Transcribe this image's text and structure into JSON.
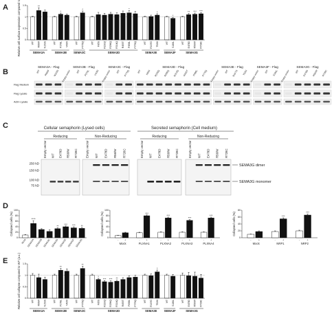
{
  "panels": {
    "a": "A",
    "b": "B",
    "c": "C",
    "d": "D",
    "e": "E"
  },
  "panel_a": {
    "ylabel": "Relative cell surface expression compared to WT (%)",
    "yticks": [
      "0",
      "0.5",
      "1",
      "1.5"
    ],
    "ymax": 1.5,
    "groups": [
      {
        "name": "SEMA3A",
        "bars": [
          {
            "label": "WT",
            "value": 1.0,
            "err": 0.03,
            "fill": "white",
            "star": ""
          },
          {
            "label": "R66W",
            "value": 1.28,
            "err": 0.12,
            "fill": "black",
            "star": "**"
          },
          {
            "label": "N153S",
            "value": 1.22,
            "err": 0.08,
            "fill": "black",
            "star": ""
          }
        ]
      },
      {
        "name": "SEMA3B",
        "bars": [
          {
            "label": "WT",
            "value": 1.0,
            "err": 0.03,
            "fill": "white",
            "star": ""
          },
          {
            "label": "P278L",
            "value": 1.12,
            "err": 0.05,
            "fill": "black",
            "star": "*"
          },
          {
            "label": "V435I",
            "value": 1.08,
            "err": 0.05,
            "fill": "black",
            "star": ""
          }
        ]
      },
      {
        "name": "SEMA3C",
        "bars": [
          {
            "label": "WT",
            "value": 1.0,
            "err": 0.03,
            "fill": "white",
            "star": ""
          },
          {
            "label": "P775Q",
            "value": 1.18,
            "err": 0.08,
            "fill": "black",
            "star": "*"
          }
        ]
      },
      {
        "name": "SEMA3D",
        "bars": [
          {
            "label": "WT",
            "value": 1.0,
            "err": 0.03,
            "fill": "white",
            "star": ""
          },
          {
            "label": "F85S",
            "value": 1.1,
            "err": 0.1,
            "fill": "black",
            "star": ""
          },
          {
            "label": "R230Q",
            "value": 1.08,
            "err": 0.08,
            "fill": "black",
            "star": ""
          },
          {
            "label": "R296Q",
            "value": 1.12,
            "err": 0.08,
            "fill": "black",
            "star": ""
          },
          {
            "label": "R314Q",
            "value": 1.1,
            "err": 0.08,
            "fill": "black",
            "star": ""
          },
          {
            "label": "R455T",
            "value": 1.16,
            "err": 0.1,
            "fill": "black",
            "star": ""
          },
          {
            "label": "P498L",
            "value": 1.18,
            "err": 0.1,
            "fill": "black",
            "star": "*"
          },
          {
            "label": "P775Q",
            "value": 1.14,
            "err": 0.1,
            "fill": "black",
            "star": ""
          }
        ]
      },
      {
        "name": "SEMA3E",
        "bars": [
          {
            "label": "WT",
            "value": 1.0,
            "err": 0.03,
            "fill": "white",
            "star": ""
          },
          {
            "label": "R167G",
            "value": 1.02,
            "err": 0.06,
            "fill": "black",
            "star": ""
          },
          {
            "label": "T526I",
            "value": 1.08,
            "err": 0.06,
            "fill": "black",
            "star": "*"
          }
        ]
      },
      {
        "name": "SEMA3F",
        "bars": [
          {
            "label": "WT",
            "value": 1.0,
            "err": 0.03,
            "fill": "white",
            "star": ""
          },
          {
            "label": "S186L",
            "value": 0.94,
            "err": 0.05,
            "fill": "black",
            "star": "*"
          }
        ]
      },
      {
        "name": "SEMA3G",
        "bars": [
          {
            "label": "WT",
            "value": 1.0,
            "err": 0.03,
            "fill": "white",
            "star": ""
          },
          {
            "label": "E478D",
            "value": 1.1,
            "err": 0.05,
            "fill": "black",
            "star": "**"
          },
          {
            "label": "R56/W",
            "value": 1.12,
            "err": 0.05,
            "fill": "black",
            "star": "***"
          },
          {
            "label": "R728C",
            "value": 1.14,
            "err": 0.05,
            "fill": "black",
            "star": "***"
          }
        ]
      }
    ]
  },
  "panel_b": {
    "rows": [
      "Flag Medium",
      "Flag Lysate",
      "Actin Lysate"
    ],
    "blots": [
      {
        "title": "SEMA3A - Flag",
        "lanes": [
          "WT",
          "R66W",
          "N153S"
        ]
      },
      {
        "title": "SEMA3B - Flag",
        "lanes": [
          "Empty vector",
          "WT",
          "P278L",
          "V435I"
        ]
      },
      {
        "title": "SEMA3C - Flag",
        "lanes": [
          "Empty vector",
          "WT",
          "P775Q"
        ]
      },
      {
        "title": "SEMA3D - Flag",
        "lanes": [
          "WT",
          "F85S",
          "R230Q",
          "R296Q",
          "R314Q",
          "R455T",
          "P498L",
          "P775Q"
        ]
      },
      {
        "title": "SEMA3E - Flag",
        "lanes": [
          "Empty vector",
          "WT",
          "R167G",
          "T526I"
        ]
      },
      {
        "title": "SEMA3F - Flag",
        "lanes": [
          "Empty vector",
          "WT",
          "S186L"
        ]
      },
      {
        "title": "SEMA3G - Flag",
        "lanes": [
          "Empty vector",
          "WT",
          "E478D",
          "R56/W",
          "R728C"
        ]
      }
    ]
  },
  "panel_c": {
    "title_left": "Cellular semaphorin (Lysed cells)",
    "title_right": "Secreted semaphorin (Cell medium)",
    "sub": [
      "Reducing",
      "Non-Reducing",
      "Reducing",
      "Non-Reducing"
    ],
    "lanes": [
      "Empty vector",
      "WT",
      "E478D",
      "R56/W",
      "R728C"
    ],
    "markers": [
      "250 kD",
      "150 kD",
      "100 kD",
      "75 kD"
    ],
    "dimer": "SEMA3G dimer",
    "monomer": "SEMA3G monomer"
  },
  "panel_d": {
    "ylabel": "Collapsed cells (%)",
    "left": {
      "yticks": [
        "0",
        "20",
        "40",
        "60",
        "80",
        "100"
      ],
      "ymax": 100,
      "bars": [
        {
          "label": "Mock",
          "value": 10,
          "err": 2,
          "fill": "white",
          "star": ""
        },
        {
          "label": "SEMA3A",
          "value": 52,
          "err": 10,
          "fill": "black",
          "star": "****"
        },
        {
          "label": "SEMA3B",
          "value": 30,
          "err": 3,
          "fill": "black",
          "star": ""
        },
        {
          "label": "SEMA3C",
          "value": 23,
          "err": 6,
          "fill": "black",
          "star": ""
        },
        {
          "label": "SEMA3D",
          "value": 33,
          "err": 3,
          "fill": "black",
          "star": "**"
        },
        {
          "label": "SEMA3E",
          "value": 40,
          "err": 3,
          "fill": "black",
          "star": "***"
        },
        {
          "label": "SEMA3F",
          "value": 36,
          "err": 4,
          "fill": "black",
          "star": "***"
        },
        {
          "label": "SEMA3G",
          "value": 34,
          "err": 4,
          "fill": "black",
          "star": "**"
        }
      ]
    },
    "middle": {
      "yticks": [
        "0",
        "20",
        "40",
        "60",
        "80",
        "100"
      ],
      "ymax": 100,
      "signs": [
        "-",
        "+"
      ],
      "groups": [
        {
          "name": "Mock",
          "vals": [
            8,
            18
          ],
          "errs": [
            1,
            2
          ],
          "stars": [
            "",
            ""
          ]
        },
        {
          "name": "PLXNA1",
          "vals": [
            18,
            80
          ],
          "errs": [
            2,
            3
          ],
          "stars": [
            "",
            "***"
          ]
        },
        {
          "name": "PLXNA2",
          "vals": [
            20,
            72
          ],
          "errs": [
            2,
            3
          ],
          "stars": [
            "",
            "***"
          ]
        },
        {
          "name": "PLXNA3",
          "vals": [
            20,
            63
          ],
          "errs": [
            2,
            3
          ],
          "stars": [
            "",
            "***"
          ]
        },
        {
          "name": "PLXNA4",
          "vals": [
            20,
            72
          ],
          "errs": [
            2,
            3
          ],
          "stars": [
            "",
            "***"
          ]
        }
      ]
    },
    "right": {
      "yticks": [
        "0",
        "20",
        "40",
        "60",
        "80"
      ],
      "ymax": 80,
      "signs": [
        "-",
        "+"
      ],
      "groups": [
        {
          "name": "Mock",
          "vals": [
            10,
            18
          ],
          "errs": [
            1,
            2
          ],
          "stars": [
            "",
            ""
          ]
        },
        {
          "name": "NRP1",
          "vals": [
            18,
            55
          ],
          "errs": [
            2,
            3
          ],
          "stars": [
            "",
            "***"
          ]
        },
        {
          "name": "NRP2",
          "vals": [
            20,
            66
          ],
          "errs": [
            2,
            3
          ],
          "stars": [
            "",
            "***"
          ]
        }
      ]
    }
  },
  "panel_e": {
    "ylabel": "Relative cell collapse compared to WT (a.u.)",
    "yticks": [
      "0",
      "0.5",
      "1",
      "1.5"
    ],
    "ymax": 1.5,
    "groups": [
      {
        "name": "SEMA3A",
        "bars": [
          {
            "label": "WT",
            "value": 1.0,
            "err": 0.08,
            "fill": "white",
            "star": ""
          },
          {
            "label": "R66W",
            "value": 0.9,
            "err": 0.15,
            "fill": "black",
            "star": ""
          },
          {
            "label": "N153S",
            "value": 0.82,
            "err": 0.1,
            "fill": "black",
            "star": ""
          }
        ]
      },
      {
        "name": "SEMA3B",
        "bars": [
          {
            "label": "WT",
            "value": 1.0,
            "err": 0.05,
            "fill": "white",
            "star": ""
          },
          {
            "label": "P278L",
            "value": 1.22,
            "err": 0.08,
            "fill": "black",
            "star": "**"
          },
          {
            "label": "V435I",
            "value": 1.18,
            "err": 0.1,
            "fill": "black",
            "star": ""
          }
        ]
      },
      {
        "name": "SEMA3C",
        "bars": [
          {
            "label": "WT",
            "value": 1.0,
            "err": 0.05,
            "fill": "white",
            "star": ""
          },
          {
            "label": "P775Q",
            "value": 1.3,
            "err": 0.1,
            "fill": "black",
            "star": "**"
          }
        ]
      },
      {
        "name": "SEMA3D",
        "bars": [
          {
            "label": "WT",
            "value": 1.0,
            "err": 0.05,
            "fill": "white",
            "star": ""
          },
          {
            "label": "F85S",
            "value": 0.82,
            "err": 0.05,
            "fill": "black",
            "star": "*"
          },
          {
            "label": "R230Q",
            "value": 0.72,
            "err": 0.05,
            "fill": "black",
            "star": "***"
          },
          {
            "label": "R296Q",
            "value": 0.7,
            "err": 0.06,
            "fill": "black",
            "star": "***"
          },
          {
            "label": "R314Q",
            "value": 0.74,
            "err": 0.05,
            "fill": "black",
            "star": "**"
          },
          {
            "label": "R455T",
            "value": 0.82,
            "err": 0.08,
            "fill": "black",
            "star": ""
          },
          {
            "label": "P498L",
            "value": 0.9,
            "err": 0.08,
            "fill": "black",
            "star": ""
          },
          {
            "label": "P775Q",
            "value": 0.92,
            "err": 0.08,
            "fill": "black",
            "star": ""
          }
        ]
      },
      {
        "name": "SEMA3E",
        "bars": [
          {
            "label": "WT",
            "value": 1.0,
            "err": 0.05,
            "fill": "white",
            "star": ""
          },
          {
            "label": "R167G",
            "value": 0.98,
            "err": 0.08,
            "fill": "black",
            "star": ""
          },
          {
            "label": "T526I",
            "value": 1.15,
            "err": 0.08,
            "fill": "black",
            "star": "*"
          }
        ]
      },
      {
        "name": "SEMA3F",
        "bars": [
          {
            "label": "WT",
            "value": 1.0,
            "err": 0.05,
            "fill": "white",
            "star": ""
          },
          {
            "label": "S186L",
            "value": 0.96,
            "err": 0.08,
            "fill": "black",
            "star": ""
          }
        ]
      },
      {
        "name": "SEMA3G",
        "bars": [
          {
            "label": "WT",
            "value": 1.0,
            "err": 0.1,
            "fill": "white",
            "star": ""
          },
          {
            "label": "E478D",
            "value": 0.98,
            "err": 0.15,
            "fill": "black",
            "star": ""
          },
          {
            "label": "R56/W",
            "value": 0.96,
            "err": 0.18,
            "fill": "black",
            "star": ""
          },
          {
            "label": "R728C",
            "value": 0.88,
            "err": 0.16,
            "fill": "black",
            "star": ""
          }
        ]
      }
    ]
  }
}
